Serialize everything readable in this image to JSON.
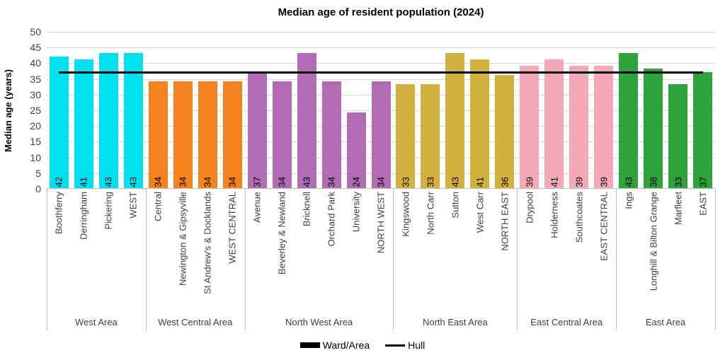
{
  "chart_data": {
    "type": "bar",
    "title": "Median age of resident population (2024)",
    "ylabel": "Median age (years)",
    "xlabel": "",
    "ylim": [
      0,
      50
    ],
    "y_ticks": [
      0,
      5,
      10,
      15,
      20,
      25,
      30,
      35,
      40,
      45,
      50
    ],
    "grid": true,
    "legend_position": "bottom",
    "legend_labels": [
      "Ward/Area",
      "Hull"
    ],
    "reference_line": {
      "name": "Hull",
      "value": 37,
      "color": "#000000"
    },
    "groups": [
      {
        "area": "West Area",
        "color": "#00E1EF",
        "wards": [
          {
            "name": "Boothferry",
            "value": 42
          },
          {
            "name": "Derringham",
            "value": 41
          },
          {
            "name": "Pickering",
            "value": 43
          },
          {
            "name": "WEST",
            "value": 43
          }
        ]
      },
      {
        "area": "West Central Area",
        "color": "#F6821F",
        "wards": [
          {
            "name": "Central",
            "value": 34
          },
          {
            "name": "Newington & Gipsyville",
            "value": 34
          },
          {
            "name": "St Andrew's & Docklands",
            "value": 34
          },
          {
            "name": "WEST CENTRAL",
            "value": 34
          }
        ]
      },
      {
        "area": "North West Area",
        "color": "#B16CB5",
        "wards": [
          {
            "name": "Avenue",
            "value": 37
          },
          {
            "name": "Beverley & Newland",
            "value": 34
          },
          {
            "name": "Bricknell",
            "value": 43
          },
          {
            "name": "Orchard Park",
            "value": 34
          },
          {
            "name": "University",
            "value": 24
          },
          {
            "name": "NORTH WEST",
            "value": 34
          }
        ]
      },
      {
        "area": "North East Area",
        "color": "#D3B13E",
        "wards": [
          {
            "name": "Kingswood",
            "value": 33
          },
          {
            "name": "North Carr",
            "value": 33
          },
          {
            "name": "Sutton",
            "value": 43
          },
          {
            "name": "West Carr",
            "value": 41
          },
          {
            "name": "NORTH EAST",
            "value": 36
          }
        ]
      },
      {
        "area": "East Central Area",
        "color": "#F5A9B8",
        "wards": [
          {
            "name": "Drypool",
            "value": 39
          },
          {
            "name": "Holderness",
            "value": 41
          },
          {
            "name": "Southcoates",
            "value": 39
          },
          {
            "name": "EAST CENTRAL",
            "value": 39
          }
        ]
      },
      {
        "area": "East Area",
        "color": "#2EA33B",
        "wards": [
          {
            "name": "Ings",
            "value": 43
          },
          {
            "name": "Longhill & Bilton Grange",
            "value": 38
          },
          {
            "name": "Marfleet",
            "value": 33
          },
          {
            "name": "EAST",
            "value": 37
          }
        ]
      }
    ]
  }
}
